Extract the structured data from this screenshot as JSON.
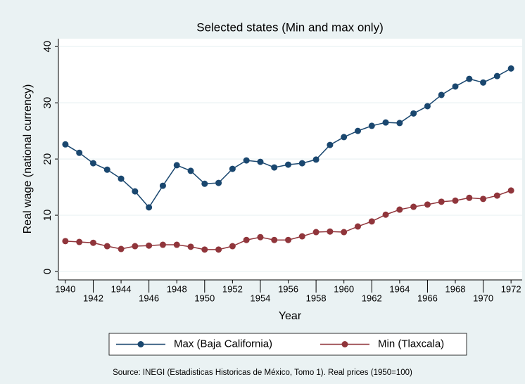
{
  "chart_data": {
    "type": "line",
    "title": "Selected states (Min and max only)",
    "xlabel": "Year",
    "ylabel": "Real wage (national currency)",
    "note": "Source: INEGI (Estadisticas Historicas de México, Tomo 1). Real prices (1950=100)",
    "x": [
      1940,
      1941,
      1942,
      1943,
      1944,
      1945,
      1946,
      1947,
      1948,
      1949,
      1950,
      1951,
      1952,
      1953,
      1954,
      1955,
      1956,
      1957,
      1958,
      1959,
      1960,
      1961,
      1962,
      1963,
      1964,
      1965,
      1966,
      1967,
      1968,
      1969,
      1970,
      1971,
      1972
    ],
    "series": [
      {
        "name": "Max (Baja California)",
        "color": "#1a476f",
        "values": [
          22.6,
          21.1,
          19.25,
          18.1,
          16.5,
          14.25,
          11.4,
          15.25,
          18.9,
          17.9,
          15.6,
          15.75,
          18.25,
          19.75,
          19.5,
          18.5,
          19,
          19.25,
          19.9,
          22.5,
          23.9,
          25,
          25.9,
          26.5,
          26.4,
          28.1,
          29.4,
          31.4,
          32.9,
          34.25,
          33.6,
          34.75,
          36.1
        ]
      },
      {
        "name": "Min (Tlaxcala)",
        "color": "#90353b",
        "values": [
          5.4,
          5.25,
          5.1,
          4.5,
          4,
          4.5,
          4.6,
          4.75,
          4.75,
          4.4,
          3.9,
          3.9,
          4.5,
          5.6,
          6.1,
          5.6,
          5.6,
          6.25,
          7,
          7.1,
          7,
          8,
          8.9,
          10.1,
          11,
          11.5,
          11.9,
          12.4,
          12.6,
          13.1,
          12.9,
          13.5,
          14.4
        ]
      }
    ],
    "xlim": [
      1939.5,
      1972.8
    ],
    "xticks": [
      1940,
      1942,
      1944,
      1946,
      1948,
      1950,
      1952,
      1954,
      1956,
      1958,
      1960,
      1962,
      1964,
      1966,
      1968,
      1970,
      1972
    ],
    "ylim": [
      -1.5,
      41.4
    ],
    "yticks": [
      0,
      10,
      20,
      30,
      40
    ],
    "grid": true,
    "legend": "bottom"
  }
}
